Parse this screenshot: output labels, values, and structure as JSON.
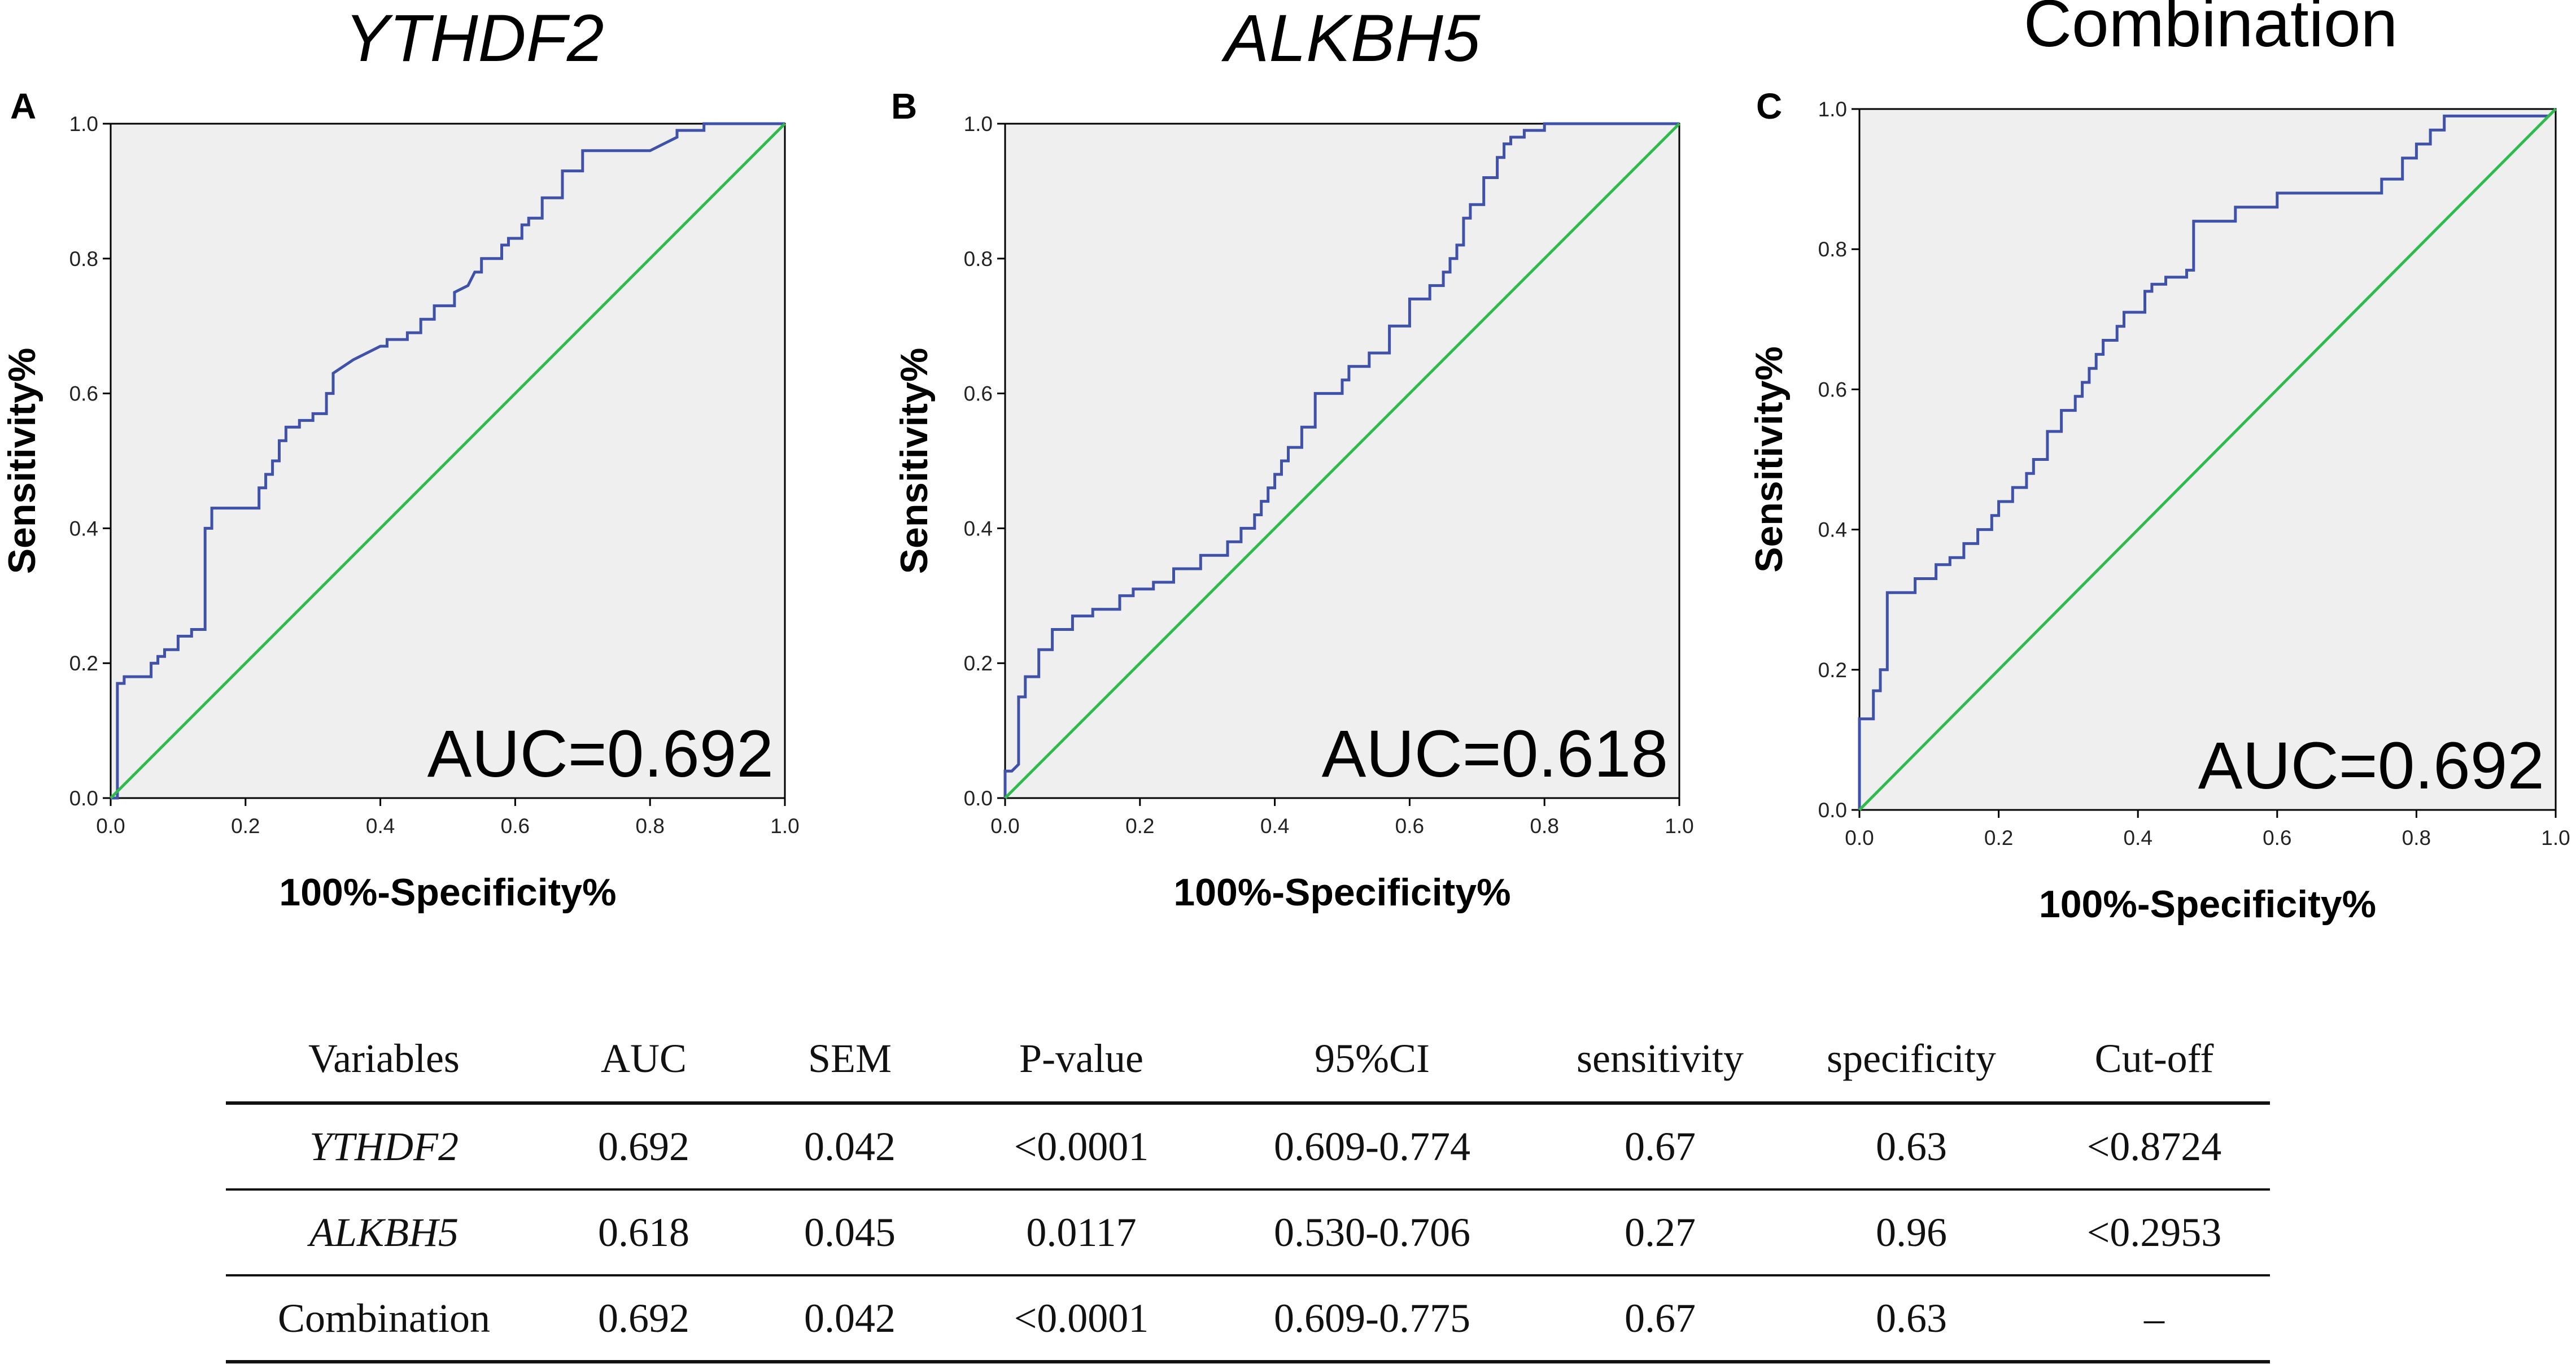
{
  "colors": {
    "roc": "#3F51A9",
    "reference": "#2EBB4D",
    "plot_bg": "#EFEFEF",
    "frame": "#000000"
  },
  "chart_data": [
    {
      "type": "line",
      "panel": "A",
      "title": "YTHDF2",
      "title_italic": true,
      "xlabel": "100%-Specificity%",
      "ylabel": "Sensitivity%",
      "xlim": [
        0,
        1
      ],
      "ylim": [
        0,
        1
      ],
      "xticks": [
        "0.0",
        "0.2",
        "0.4",
        "0.6",
        "0.8",
        "1.0"
      ],
      "yticks": [
        "0.0",
        "0.2",
        "0.4",
        "0.6",
        "0.8",
        "1.0"
      ],
      "annotation": "AUC=0.692",
      "series": [
        {
          "name": "ROC",
          "x": [
            0,
            0.01,
            0.01,
            0.02,
            0.02,
            0.06,
            0.06,
            0.07,
            0.07,
            0.08,
            0.08,
            0.1,
            0.1,
            0.12,
            0.12,
            0.14,
            0.14,
            0.15,
            0.15,
            0.17,
            0.17,
            0.22,
            0.22,
            0.23,
            0.23,
            0.24,
            0.24,
            0.25,
            0.25,
            0.26,
            0.26,
            0.28,
            0.28,
            0.3,
            0.3,
            0.32,
            0.32,
            0.33,
            0.33,
            0.36,
            0.38,
            0.4,
            0.41,
            0.41,
            0.44,
            0.44,
            0.46,
            0.46,
            0.48,
            0.48,
            0.51,
            0.51,
            0.53,
            0.54,
            0.55,
            0.55,
            0.58,
            0.58,
            0.59,
            0.59,
            0.61,
            0.61,
            0.62,
            0.62,
            0.64,
            0.64,
            0.67,
            0.67,
            0.7,
            0.7,
            0.8,
            0.82,
            0.82,
            0.84,
            0.84,
            0.88,
            0.88,
            1.0
          ],
          "y": [
            0,
            0,
            0.17,
            0.17,
            0.18,
            0.18,
            0.2,
            0.2,
            0.21,
            0.21,
            0.22,
            0.22,
            0.24,
            0.24,
            0.25,
            0.25,
            0.4,
            0.4,
            0.43,
            0.43,
            0.43,
            0.43,
            0.46,
            0.46,
            0.48,
            0.48,
            0.5,
            0.5,
            0.53,
            0.53,
            0.55,
            0.55,
            0.56,
            0.56,
            0.57,
            0.57,
            0.6,
            0.6,
            0.63,
            0.65,
            0.66,
            0.67,
            0.67,
            0.68,
            0.68,
            0.69,
            0.69,
            0.71,
            0.71,
            0.73,
            0.73,
            0.75,
            0.76,
            0.78,
            0.78,
            0.8,
            0.8,
            0.82,
            0.82,
            0.83,
            0.83,
            0.85,
            0.85,
            0.86,
            0.86,
            0.89,
            0.89,
            0.93,
            0.93,
            0.96,
            0.96,
            0.97,
            0.97,
            0.98,
            0.99,
            0.99,
            1.0,
            1.0
          ]
        },
        {
          "name": "Reference",
          "x": [
            0,
            1
          ],
          "y": [
            0,
            1
          ]
        }
      ]
    },
    {
      "type": "line",
      "panel": "B",
      "title": "ALKBH5",
      "title_italic": true,
      "xlabel": "100%-Specificity%",
      "ylabel": "Sensitivity%",
      "xlim": [
        0,
        1
      ],
      "ylim": [
        0,
        1
      ],
      "xticks": [
        "0.0",
        "0.2",
        "0.4",
        "0.6",
        "0.8",
        "1.0"
      ],
      "yticks": [
        "0.0",
        "0.2",
        "0.4",
        "0.6",
        "0.8",
        "1.0"
      ],
      "annotation": "AUC=0.618",
      "series": [
        {
          "name": "ROC",
          "x": [
            0,
            0,
            0.01,
            0.02,
            0.02,
            0.03,
            0.03,
            0.05,
            0.05,
            0.07,
            0.07,
            0.1,
            0.1,
            0.13,
            0.13,
            0.17,
            0.17,
            0.19,
            0.19,
            0.22,
            0.22,
            0.25,
            0.25,
            0.29,
            0.29,
            0.33,
            0.33,
            0.35,
            0.35,
            0.37,
            0.37,
            0.38,
            0.38,
            0.39,
            0.39,
            0.4,
            0.4,
            0.41,
            0.41,
            0.42,
            0.42,
            0.44,
            0.44,
            0.46,
            0.46,
            0.5,
            0.5,
            0.51,
            0.51,
            0.54,
            0.54,
            0.57,
            0.57,
            0.6,
            0.6,
            0.63,
            0.63,
            0.65,
            0.65,
            0.66,
            0.66,
            0.67,
            0.67,
            0.68,
            0.68,
            0.69,
            0.69,
            0.71,
            0.71,
            0.73,
            0.73,
            0.74,
            0.74,
            0.75,
            0.75,
            0.77,
            0.77,
            0.79,
            0.79,
            0.8,
            0.8,
            0.86,
            0.86,
            1.0
          ],
          "y": [
            0,
            0.04,
            0.04,
            0.05,
            0.15,
            0.15,
            0.18,
            0.18,
            0.22,
            0.22,
            0.25,
            0.25,
            0.27,
            0.27,
            0.28,
            0.28,
            0.3,
            0.3,
            0.31,
            0.31,
            0.32,
            0.32,
            0.34,
            0.34,
            0.36,
            0.36,
            0.38,
            0.38,
            0.4,
            0.4,
            0.42,
            0.42,
            0.44,
            0.44,
            0.46,
            0.46,
            0.48,
            0.48,
            0.5,
            0.5,
            0.52,
            0.52,
            0.55,
            0.55,
            0.6,
            0.6,
            0.62,
            0.62,
            0.64,
            0.64,
            0.66,
            0.66,
            0.7,
            0.7,
            0.74,
            0.74,
            0.76,
            0.76,
            0.78,
            0.78,
            0.8,
            0.8,
            0.82,
            0.82,
            0.86,
            0.86,
            0.88,
            0.88,
            0.92,
            0.92,
            0.95,
            0.95,
            0.97,
            0.97,
            0.98,
            0.98,
            0.99,
            0.99,
            0.99,
            0.99,
            1.0,
            1.0,
            1.0,
            1.0
          ]
        },
        {
          "name": "Reference",
          "x": [
            0,
            1
          ],
          "y": [
            0,
            1
          ]
        }
      ]
    },
    {
      "type": "line",
      "panel": "C",
      "title": "Combination",
      "title_italic": false,
      "xlabel": "100%-Specificity%",
      "ylabel": "Sensitivity%",
      "xlim": [
        0,
        1
      ],
      "ylim": [
        0,
        1
      ],
      "xticks": [
        "0.0",
        "0.2",
        "0.4",
        "0.6",
        "0.8",
        "1.0"
      ],
      "yticks": [
        "0.0",
        "0.2",
        "0.4",
        "0.6",
        "0.8",
        "1.0"
      ],
      "annotation": "AUC=0.692",
      "series": [
        {
          "name": "ROC",
          "x": [
            0,
            0,
            0.01,
            0.02,
            0.02,
            0.03,
            0.03,
            0.04,
            0.04,
            0.08,
            0.08,
            0.11,
            0.11,
            0.13,
            0.13,
            0.15,
            0.15,
            0.17,
            0.17,
            0.19,
            0.19,
            0.2,
            0.2,
            0.22,
            0.22,
            0.24,
            0.24,
            0.25,
            0.25,
            0.27,
            0.27,
            0.29,
            0.29,
            0.31,
            0.31,
            0.32,
            0.32,
            0.33,
            0.33,
            0.34,
            0.34,
            0.35,
            0.35,
            0.37,
            0.37,
            0.38,
            0.38,
            0.41,
            0.41,
            0.42,
            0.42,
            0.44,
            0.44,
            0.46,
            0.46,
            0.47,
            0.47,
            0.48,
            0.48,
            0.54,
            0.54,
            0.57,
            0.57,
            0.6,
            0.6,
            0.75,
            0.75,
            0.78,
            0.78,
            0.8,
            0.8,
            0.82,
            0.82,
            0.84,
            0.84,
            0.99,
            1.0
          ],
          "y": [
            0,
            0.13,
            0.13,
            0.13,
            0.17,
            0.17,
            0.2,
            0.2,
            0.31,
            0.31,
            0.33,
            0.33,
            0.35,
            0.35,
            0.36,
            0.36,
            0.38,
            0.38,
            0.4,
            0.4,
            0.42,
            0.42,
            0.44,
            0.44,
            0.46,
            0.46,
            0.48,
            0.48,
            0.5,
            0.5,
            0.54,
            0.54,
            0.57,
            0.57,
            0.59,
            0.59,
            0.61,
            0.61,
            0.63,
            0.63,
            0.65,
            0.65,
            0.67,
            0.67,
            0.69,
            0.69,
            0.71,
            0.71,
            0.74,
            0.74,
            0.75,
            0.75,
            0.76,
            0.76,
            0.76,
            0.76,
            0.77,
            0.77,
            0.84,
            0.84,
            0.86,
            0.86,
            0.86,
            0.86,
            0.88,
            0.88,
            0.9,
            0.9,
            0.93,
            0.93,
            0.95,
            0.95,
            0.97,
            0.97,
            0.99,
            0.99,
            1.0
          ]
        },
        {
          "name": "Reference",
          "x": [
            0,
            1
          ],
          "y": [
            0,
            1
          ]
        }
      ]
    },
    {
      "type": "table",
      "headers": [
        "Variables",
        "AUC",
        "SEM",
        "P-value",
        "95%CI",
        "sensitivity",
        "specificity",
        "Cut-off"
      ],
      "rows": [
        {
          "variable": "YTHDF2",
          "italic": true,
          "cells": [
            "0.692",
            "0.042",
            "<0.0001",
            "0.609-0.774",
            "0.67",
            "0.63",
            "<0.8724"
          ]
        },
        {
          "variable": "ALKBH5",
          "italic": true,
          "cells": [
            "0.618",
            "0.045",
            "0.0117",
            "0.530-0.706",
            "0.27",
            "0.96",
            "<0.2953"
          ]
        },
        {
          "variable": "Combination",
          "italic": false,
          "cells": [
            "0.692",
            "0.042",
            "<0.0001",
            "0.609-0.775",
            "0.67",
            "0.63",
            "–"
          ]
        }
      ]
    }
  ]
}
